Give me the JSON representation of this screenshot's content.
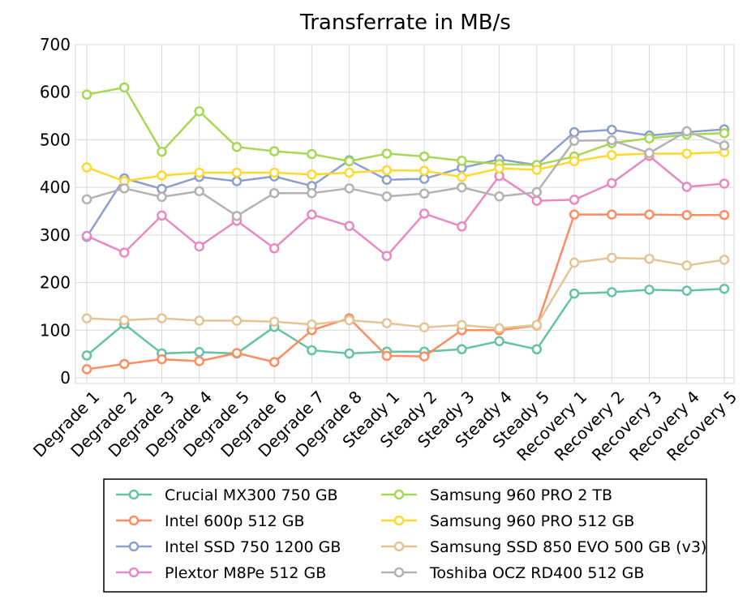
{
  "chart_data": {
    "type": "line",
    "title": "Transferrate in MB/s",
    "xlabel": "",
    "ylabel": "",
    "ylim": [
      0,
      700
    ],
    "yticks": [
      0,
      100,
      200,
      300,
      400,
      500,
      600,
      700
    ],
    "grid": true,
    "legend_position": "bottom",
    "categories": [
      "Degrade 1",
      "Degrade 2",
      "Degrade 3",
      "Degrade 4",
      "Degrade 5",
      "Degrade 6",
      "Degrade 7",
      "Degrade 8",
      "Steady 1",
      "Steady 2",
      "Steady 3",
      "Steady 4",
      "Steady 5",
      "Recovery 1",
      "Recovery 2",
      "Recovery 3",
      "Recovery 4",
      "Recovery 5"
    ],
    "series": [
      {
        "name": "Crucial MX300 750 GB",
        "color": "#66c2a5",
        "values": [
          47,
          113,
          51,
          54,
          51,
          107,
          58,
          51,
          55,
          55,
          60,
          77,
          60,
          177,
          180,
          185,
          183,
          187
        ]
      },
      {
        "name": "Intel 600p 512 GB",
        "color": "#fc8d62",
        "values": [
          18,
          29,
          39,
          35,
          52,
          33,
          100,
          125,
          46,
          45,
          100,
          100,
          110,
          343,
          343,
          343,
          342,
          342
        ]
      },
      {
        "name": "Intel SSD 750 1200 GB",
        "color": "#8da0cb",
        "values": [
          296,
          419,
          397,
          422,
          413,
          423,
          403,
          457,
          416,
          418,
          441,
          459,
          447,
          516,
          521,
          509,
          516,
          522
        ]
      },
      {
        "name": "Plextor M8Pe 512 GB",
        "color": "#e78ac3",
        "values": [
          298,
          263,
          341,
          276,
          330,
          272,
          343,
          319,
          256,
          345,
          318,
          424,
          372,
          374,
          409,
          466,
          401,
          408
        ]
      },
      {
        "name": "Samsung 960 PRO 2 TB",
        "color": "#a6d854",
        "values": [
          595,
          610,
          475,
          560,
          485,
          476,
          470,
          455,
          471,
          465,
          456,
          449,
          447,
          465,
          493,
          503,
          511,
          514
        ]
      },
      {
        "name": "Samsung 960 PRO 512 GB",
        "color": "#ffd92f",
        "values": [
          442,
          413,
          425,
          431,
          431,
          431,
          427,
          431,
          436,
          435,
          422,
          440,
          437,
          455,
          468,
          471,
          471,
          474
        ]
      },
      {
        "name": "Samsung SSD 850 EVO 500 GB (v3)",
        "color": "#e5c494",
        "values": [
          125,
          121,
          125,
          120,
          120,
          118,
          112,
          121,
          115,
          106,
          111,
          104,
          111,
          242,
          252,
          250,
          236,
          248
        ]
      },
      {
        "name": "Toshiba OCZ RD400 512 GB",
        "color": "#b3b3b3",
        "values": [
          375,
          398,
          380,
          392,
          340,
          388,
          388,
          398,
          381,
          387,
          400,
          381,
          390,
          498,
          499,
          472,
          518,
          488
        ]
      }
    ]
  }
}
